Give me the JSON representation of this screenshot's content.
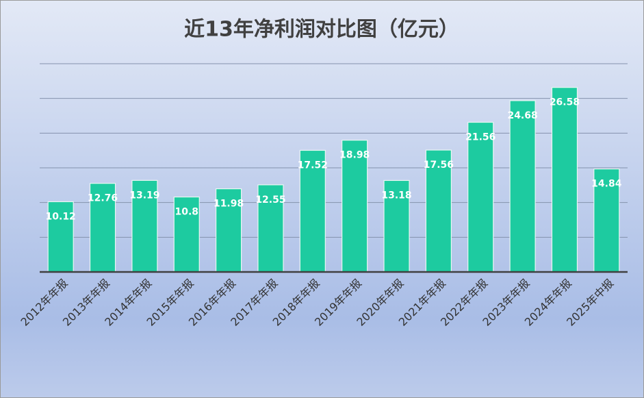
{
  "chart_data": {
    "type": "bar",
    "title": "近13年净利润对比图（亿元）",
    "categories": [
      "2012年年报",
      "2013年年报",
      "2014年年报",
      "2015年年报",
      "2016年年报",
      "2017年年报",
      "2018年年报",
      "2019年年报",
      "2020年年报",
      "2021年年报",
      "2022年年报",
      "2023年年报",
      "2024年年报",
      "2025年中报"
    ],
    "values": [
      10.12,
      12.76,
      13.19,
      10.8,
      11.98,
      12.55,
      17.52,
      18.98,
      13.18,
      17.56,
      21.56,
      24.68,
      26.58,
      14.84
    ],
    "color": "#1dcba0",
    "ylim": [
      0,
      30
    ],
    "yticks": [
      0,
      5,
      10,
      15,
      20,
      25,
      30
    ],
    "grid": true
  }
}
